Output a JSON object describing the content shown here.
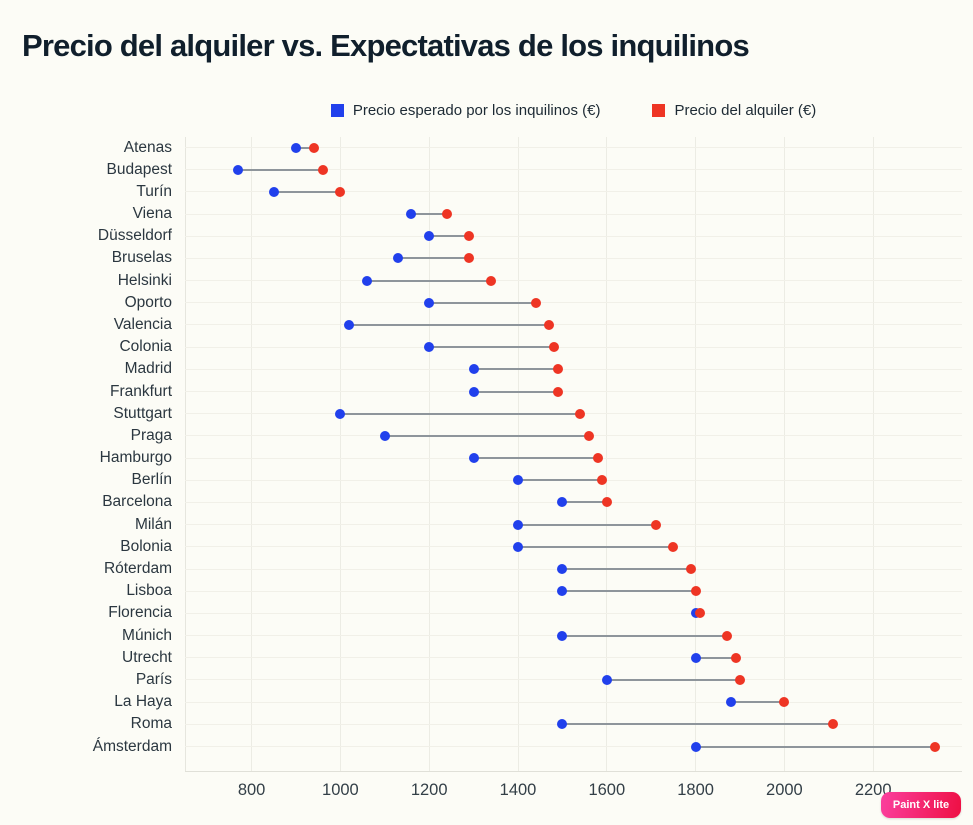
{
  "chart": {
    "title": "Precio del alquiler vs. Expectativas de los inquilinos",
    "legend": [
      {
        "label": "Precio esperado por los inquilinos (€)",
        "color": "#2140ec"
      },
      {
        "label": "Precio del alquiler (€)",
        "color": "#ee3524"
      }
    ]
  },
  "watermark": {
    "label": "Paint X lite"
  },
  "chart_data": {
    "type": "scatter",
    "subtype": "dumbbell",
    "orientation": "horizontal",
    "title": "Precio del alquiler vs. Expectativas de los inquilinos",
    "categories": [
      "Atenas",
      "Budapest",
      "Turín",
      "Viena",
      "Düsseldorf",
      "Bruselas",
      "Helsinki",
      "Oporto",
      "Valencia",
      "Colonia",
      "Madrid",
      "Frankfurt",
      "Stuttgart",
      "Praga",
      "Hamburgo",
      "Berlín",
      "Barcelona",
      "Milán",
      "Bolonia",
      "Róterdam",
      "Lisboa",
      "Florencia",
      "Múnich",
      "Utrecht",
      "París",
      "La Haya",
      "Roma",
      "Ámsterdam"
    ],
    "series": [
      {
        "name": "Precio esperado por los inquilinos (€)",
        "color": "#2140ec",
        "values": [
          900,
          770,
          850,
          1160,
          1200,
          1130,
          1060,
          1200,
          1020,
          1200,
          1300,
          1300,
          1000,
          1100,
          1300,
          1400,
          1500,
          1400,
          1400,
          1500,
          1500,
          1800,
          1500,
          1800,
          1600,
          1880,
          1500,
          1800
        ]
      },
      {
        "name": "Precio del alquiler (€)",
        "color": "#ee3524",
        "values": [
          940,
          960,
          1000,
          1240,
          1290,
          1290,
          1340,
          1440,
          1470,
          1480,
          1490,
          1490,
          1540,
          1560,
          1580,
          1590,
          1600,
          1710,
          1750,
          1790,
          1800,
          1810,
          1870,
          1890,
          1900,
          2000,
          2110,
          2340
        ]
      }
    ],
    "x_ticks": [
      800,
      1000,
      1200,
      1400,
      1600,
      1800,
      2000,
      2200
    ],
    "xlim": [
      650,
      2400
    ],
    "xlabel": "",
    "ylabel": "",
    "grid": true,
    "legend_position": "top",
    "connector_color": "#8e959b"
  }
}
